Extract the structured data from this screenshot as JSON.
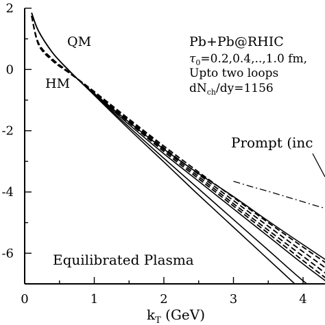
{
  "chart_data": {
    "type": "line",
    "xlabel_main": "k",
    "xlabel_sub": "T",
    "xlabel_unit": " (GeV)",
    "xlim": [
      0,
      4.35
    ],
    "ylim": [
      -7,
      2
    ],
    "y_scale": "log10",
    "x_ticks": [
      "0",
      "1",
      "2",
      "3",
      "4"
    ],
    "y_ticks": [
      {
        "v": 2,
        "label": "2"
      },
      {
        "v": 0,
        "label": "0"
      },
      {
        "v": -2,
        "label": "-2"
      },
      {
        "v": -4,
        "label": "-4"
      },
      {
        "v": -6,
        "label": "-6"
      }
    ],
    "annotations": {
      "qm": "QM",
      "hm": "HM",
      "system": "Pb+Pb@RHIC",
      "tau_symbol": "τ",
      "tau_sub": "0",
      "tau_values": "=0.2,0.4,..,1.0 fm,",
      "loops": "Upto two loops",
      "dn_main": "dN",
      "dn_sub": "ch",
      "dn_rest": "/dy=1156",
      "prompt": "Prompt (inc",
      "plasma": "Equilibrated Plasma"
    },
    "series": [
      {
        "style": "solid",
        "x": [
          0.1,
          0.2,
          0.4,
          0.6,
          0.8,
          1.0,
          1.5,
          2.0,
          2.5,
          3.0,
          3.5,
          4.0,
          4.35
        ],
        "y": [
          1.85,
          1.25,
          0.55,
          0.05,
          -0.4,
          -0.78,
          -1.72,
          -2.6,
          -3.4,
          -4.15,
          -4.95,
          -5.72,
          -6.25
        ]
      },
      {
        "style": "solid",
        "x": [
          0.1,
          0.2,
          0.4,
          0.6,
          0.8,
          1.0,
          1.5,
          2.0,
          2.5,
          3.0,
          3.5,
          4.0,
          4.35
        ],
        "y": [
          1.85,
          1.25,
          0.55,
          0.05,
          -0.4,
          -0.8,
          -1.8,
          -2.75,
          -3.65,
          -4.55,
          -5.45,
          -6.35,
          -6.95
        ]
      },
      {
        "style": "solid",
        "x": [
          0.1,
          0.2,
          0.4,
          0.6,
          0.8,
          1.0,
          1.5,
          2.0,
          2.5,
          3.0,
          3.5,
          4.0,
          4.35
        ],
        "y": [
          1.85,
          1.25,
          0.55,
          0.05,
          -0.4,
          -0.82,
          -1.88,
          -2.9,
          -3.9,
          -4.9,
          -5.9,
          -6.9,
          -7.5
        ]
      },
      {
        "style": "solid",
        "x": [
          0.1,
          0.2,
          0.4,
          0.6,
          0.8,
          1.0,
          1.5,
          2.0,
          2.5,
          3.0,
          3.5,
          4.0,
          4.35
        ],
        "y": [
          1.85,
          1.25,
          0.55,
          0.05,
          -0.4,
          -0.84,
          -1.95,
          -3.02,
          -4.1,
          -5.15,
          -6.2,
          -7.25,
          -8.0
        ]
      },
      {
        "style": "dashed",
        "x": [
          0.1,
          0.2,
          0.4,
          0.6,
          0.8,
          1.0,
          1.5,
          2.0,
          2.5,
          3.0,
          3.5,
          4.0,
          4.35
        ],
        "y": [
          1.75,
          0.8,
          0.28,
          -0.05,
          -0.38,
          -0.72,
          -1.62,
          -2.5,
          -3.35,
          -4.18,
          -5.0,
          -5.8,
          -6.35
        ]
      },
      {
        "style": "dashed",
        "x": [
          0.1,
          0.2,
          0.4,
          0.6,
          0.8,
          1.0,
          1.5,
          2.0,
          2.5,
          3.0,
          3.5,
          4.0,
          4.35
        ],
        "y": [
          1.75,
          0.82,
          0.3,
          -0.04,
          -0.38,
          -0.74,
          -1.66,
          -2.56,
          -3.43,
          -4.28,
          -5.12,
          -5.95,
          -6.52
        ]
      },
      {
        "style": "dashed",
        "x": [
          0.1,
          0.2,
          0.4,
          0.6,
          0.8,
          1.0,
          1.5,
          2.0,
          2.5,
          3.0,
          3.5,
          4.0,
          4.35
        ],
        "y": [
          1.75,
          0.84,
          0.32,
          -0.03,
          -0.38,
          -0.76,
          -1.7,
          -2.62,
          -3.5,
          -4.38,
          -5.25,
          -6.1,
          -6.7
        ]
      },
      {
        "style": "dashed",
        "x": [
          0.1,
          0.2,
          0.4,
          0.6,
          0.8,
          1.0,
          1.5,
          2.0,
          2.5,
          3.0,
          3.5,
          4.0,
          4.35
        ],
        "y": [
          1.75,
          0.86,
          0.34,
          -0.02,
          -0.38,
          -0.78,
          -1.74,
          -2.68,
          -3.57,
          -4.46,
          -5.35,
          -6.24,
          -6.85
        ]
      },
      {
        "style": "dashdot",
        "x": [
          3.0,
          3.25,
          3.5,
          3.75,
          4.0,
          4.2,
          4.35
        ],
        "y": [
          -3.65,
          -3.82,
          -3.98,
          -4.15,
          -4.32,
          -4.46,
          -4.55
        ]
      }
    ]
  }
}
